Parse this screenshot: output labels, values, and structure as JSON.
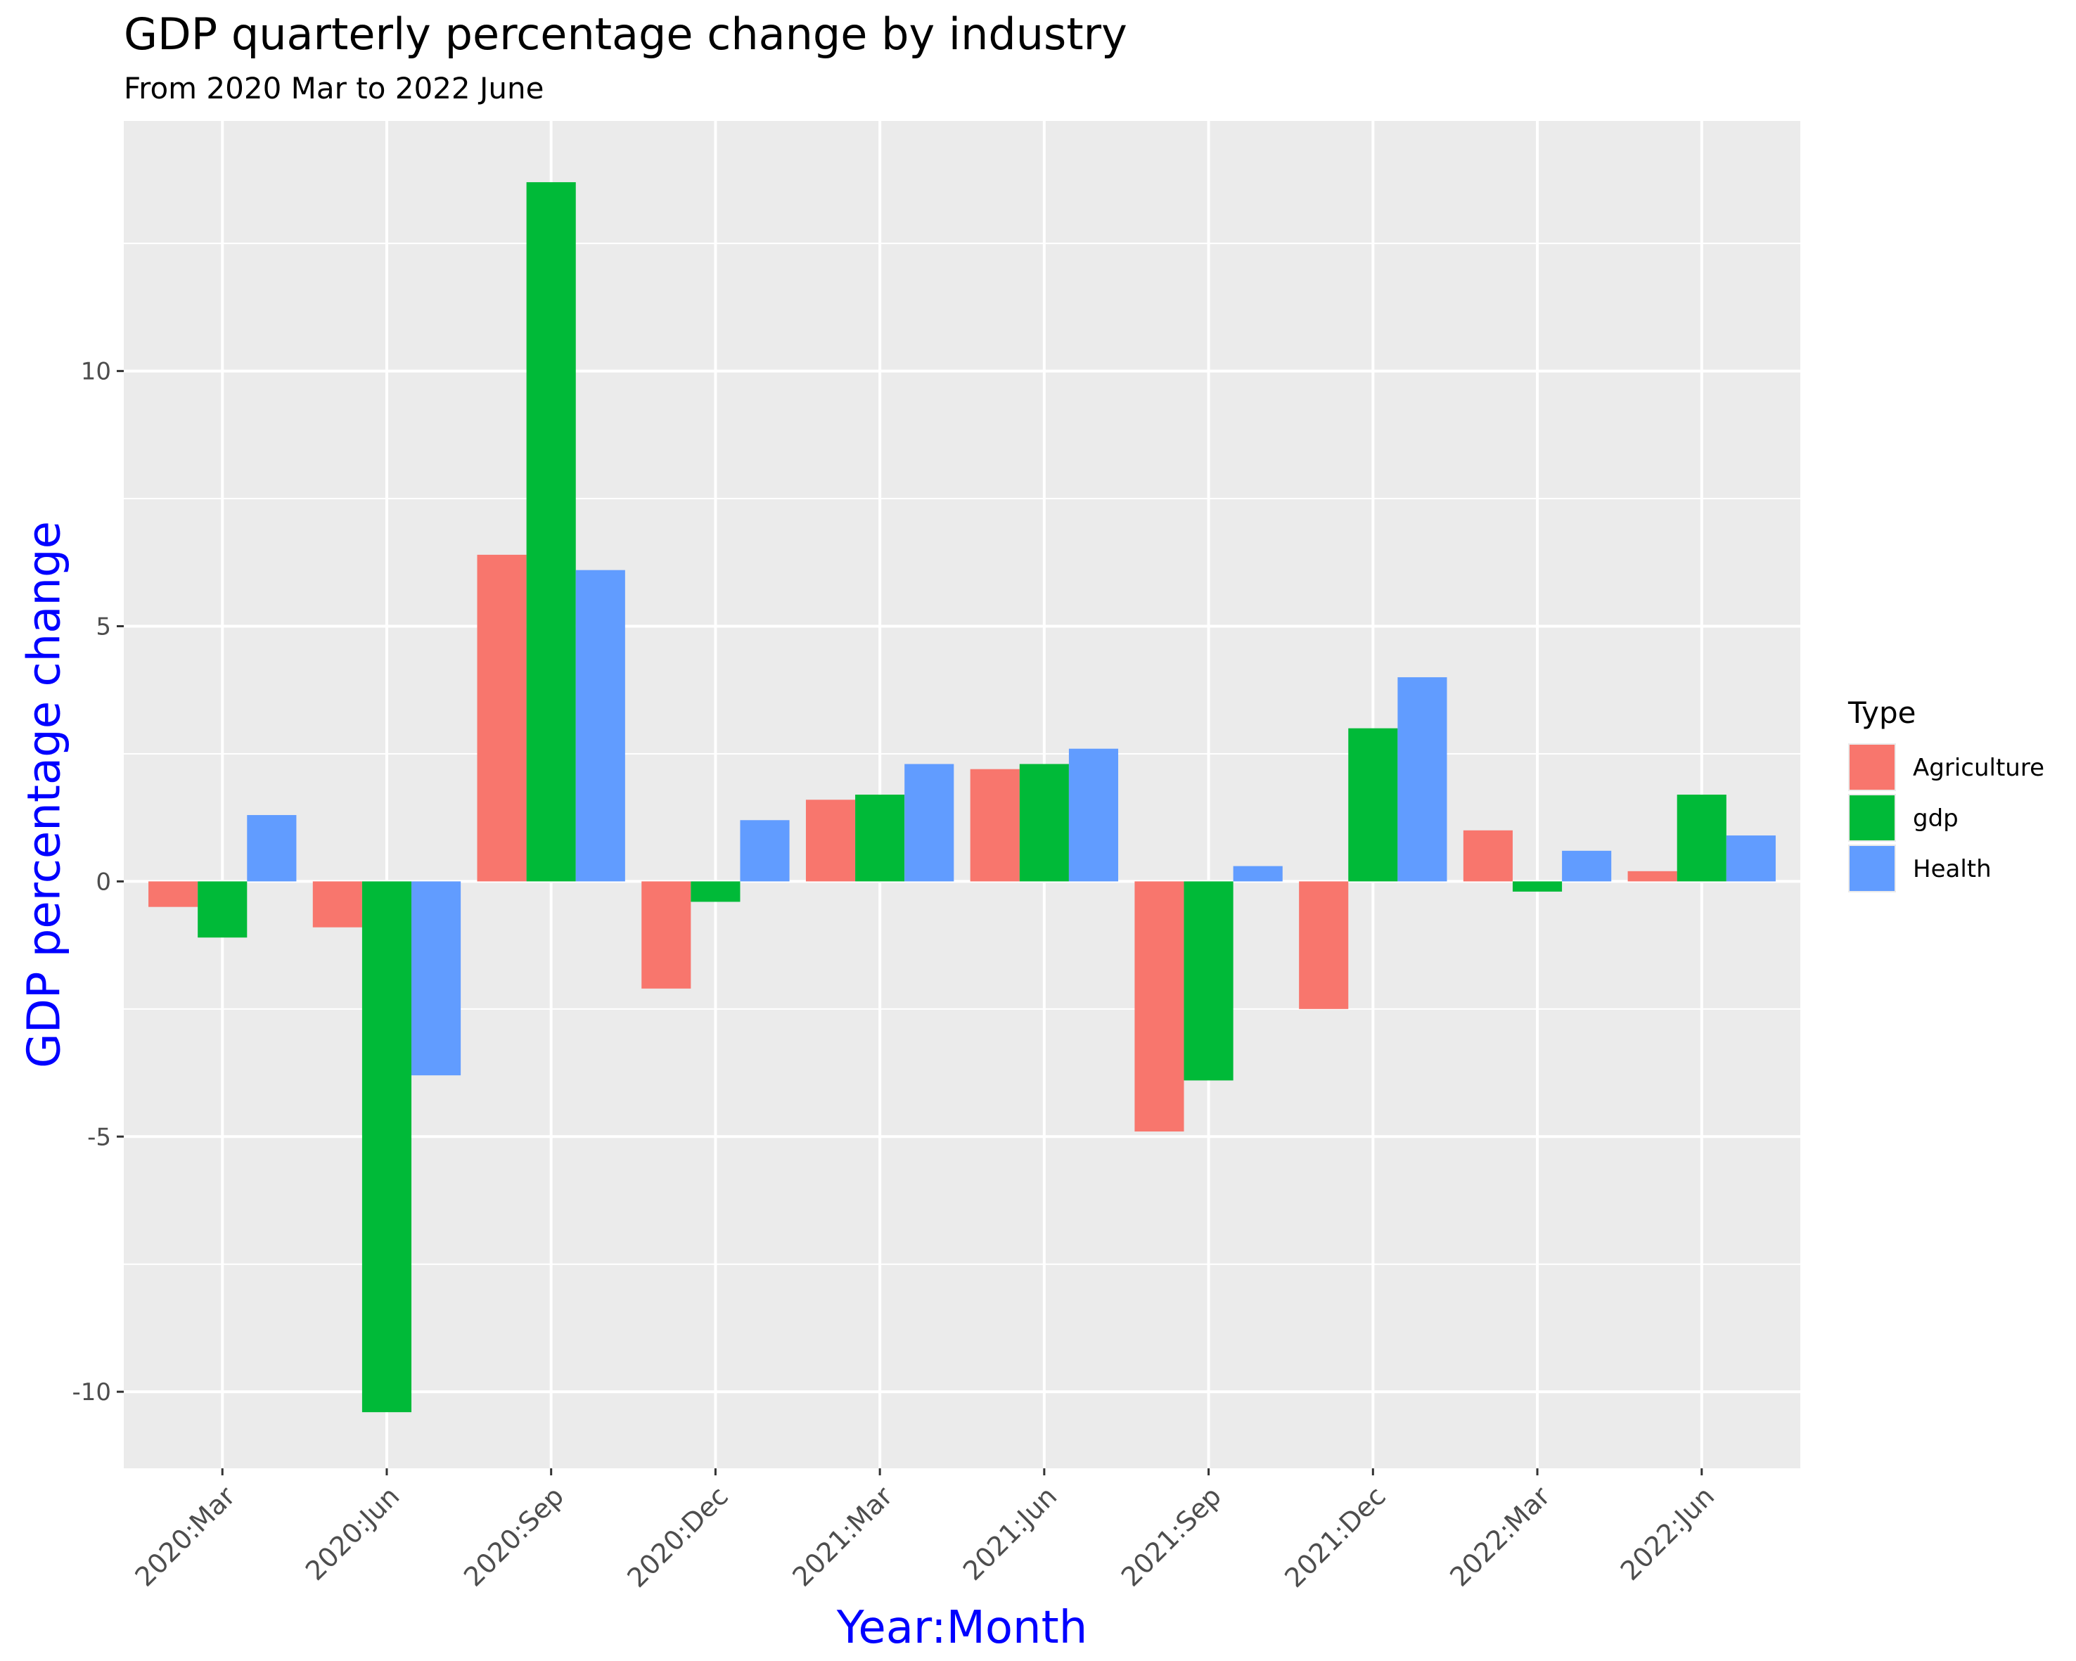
{
  "chart_data": {
    "type": "bar",
    "title": "GDP quarterly percentage change by industry",
    "subtitle": "From 2020 Mar to 2022 June",
    "xlabel": "Year:Month",
    "ylabel": "GDP percentage change",
    "categories": [
      "2020:Mar",
      "2020:Jun",
      "2020:Sep",
      "2020:Dec",
      "2021:Mar",
      "2021:Jun",
      "2021:Sep",
      "2021:Dec",
      "2022:Mar",
      "2022:Jun"
    ],
    "series": [
      {
        "name": "Agriculture",
        "color": "#F8766D",
        "values": [
          -0.5,
          -0.9,
          6.4,
          -2.1,
          1.6,
          2.2,
          -4.9,
          -2.5,
          1.0,
          0.2
        ]
      },
      {
        "name": "gdp",
        "color": "#00BA38",
        "values": [
          -1.1,
          -10.4,
          13.7,
          -0.4,
          1.7,
          2.3,
          -3.9,
          3.0,
          -0.2,
          1.7
        ]
      },
      {
        "name": "Health",
        "color": "#619CFF",
        "values": [
          1.3,
          -3.8,
          6.1,
          1.2,
          2.3,
          2.6,
          0.3,
          4.0,
          0.6,
          0.9
        ]
      }
    ],
    "ylim": [
      -11.5,
      14.9
    ],
    "yticks": [
      -10,
      -5,
      0,
      5,
      10
    ],
    "ytick_labels": [
      "-10",
      "-5",
      "0",
      "5",
      "10"
    ],
    "legend_title": "Type",
    "legend_position": "right",
    "grid": true,
    "colors": {
      "panel_background": "#EBEBEB",
      "grid_line": "#FFFFFF",
      "axis_title": "#0000FF",
      "tick_label": "#4D4D4D"
    }
  }
}
